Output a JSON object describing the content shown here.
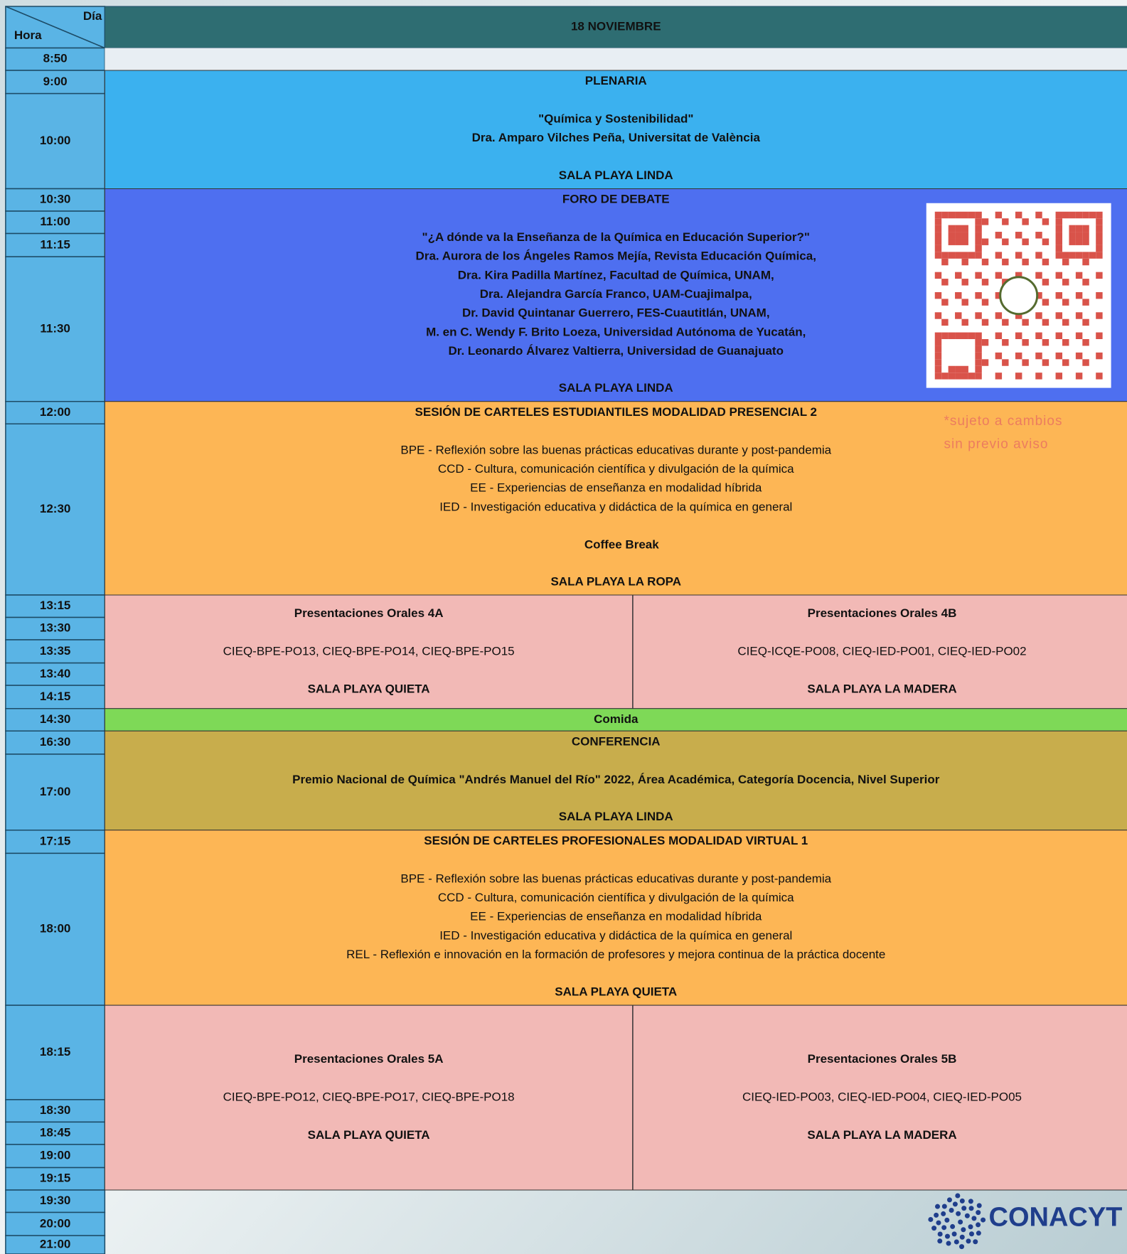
{
  "header": {
    "day_label": "Día",
    "hour_label": "Hora",
    "date": "18 NOVIEMBRE"
  },
  "times": [
    "8:50",
    "9:00",
    "10:00",
    "10:30",
    "11:00",
    "11:15",
    "11:30",
    "12:00",
    "12:30",
    "13:15",
    "13:30",
    "13:35",
    "13:40",
    "14:15",
    "14:30",
    "16:30",
    "17:00",
    "17:15",
    "18:00",
    "18:15",
    "18:30",
    "18:45",
    "19:00",
    "19:15",
    "19:30",
    "20:00",
    "21:00"
  ],
  "sessions": [
    {
      "title": "PLENARIA",
      "lines": [
        "\"Química y Sostenibilidad\"",
        "Dra. Amparo Vilches Peña, Universitat de València"
      ],
      "room": "SALA PLAYA LINDA"
    },
    {
      "title": "FORO DE DEBATE",
      "lines": [
        "\"¿A dónde va la Enseñanza de la Química en Educación Superior?\"",
        "Dra. Aurora de los Ángeles Ramos Mejía, Revista Educación Química,",
        "Dra. Kira Padilla Martínez, Facultad de Química, UNAM,",
        "Dra. Alejandra García Franco, UAM-Cuajimalpa,",
        "Dr. David Quintanar Guerrero, FES-Cuautitlán, UNAM,",
        "M. en C. Wendy F. Brito Loeza, Universidad Autónoma de Yucatán,",
        "Dr. Leonardo Álvarez Valtierra, Universidad de Guanajuato"
      ],
      "room": "SALA PLAYA LINDA"
    },
    {
      "title": "SESIÓN DE CARTELES ESTUDIANTILES MODALIDAD PRESENCIAL 2",
      "lines": [
        "BPE - Reflexión sobre las buenas prácticas educativas durante y post-pandemia",
        "CCD - Cultura, comunicación científica y divulgación de la química",
        "EE - Experiencias de enseñanza en modalidad híbrida",
        "IED - Investigación educativa y didáctica de la química en general"
      ],
      "extra": "Coffee Break",
      "room": "SALA PLAYA LA ROPA"
    },
    {
      "columns": [
        {
          "title": "Presentaciones Orales 4A",
          "codes": "CIEQ-BPE-PO13, CIEQ-BPE-PO14, CIEQ-BPE-PO15",
          "room": "SALA PLAYA QUIETA"
        },
        {
          "title": "Presentaciones Orales 4B",
          "codes": "CIEQ-ICQE-PO08, CIEQ-IED-PO01, CIEQ-IED-PO02",
          "room": "SALA PLAYA LA MADERA"
        }
      ]
    },
    {
      "title": "Comida"
    },
    {
      "title": "CONFERENCIA",
      "lines": [
        "Premio Nacional de Química \"Andrés Manuel del Río\" 2022, Área Académica, Categoría Docencia, Nivel Superior"
      ],
      "room": "SALA PLAYA LINDA"
    },
    {
      "title": "SESIÓN DE CARTELES PROFESIONALES  MODALIDAD VIRTUAL 1",
      "lines": [
        "BPE - Reflexión sobre las buenas prácticas educativas durante y post-pandemia",
        "CCD - Cultura, comunicación científica y divulgación de la química",
        "EE - Experiencias de enseñanza en modalidad híbrida",
        "IED - Investigación educativa y didáctica de la química en general",
        "REL - Reflexión e innovación en la formación de profesores y mejora continua de la práctica docente"
      ],
      "room": "SALA PLAYA QUIETA"
    },
    {
      "columns": [
        {
          "title": "Presentaciones Orales 5A",
          "codes": "CIEQ-BPE-PO12, CIEQ-BPE-PO17, CIEQ-BPE-PO18",
          "room": "SALA PLAYA QUIETA"
        },
        {
          "title": "Presentaciones Orales 5B",
          "codes": "CIEQ-IED-PO03, CIEQ-IED-PO04, CIEQ-IED-PO05",
          "room": "SALA PLAYA LA MADERA"
        }
      ]
    }
  ],
  "note": [
    "*sujeto a cambios",
    "sin previo aviso"
  ],
  "logo": "CONACYT"
}
